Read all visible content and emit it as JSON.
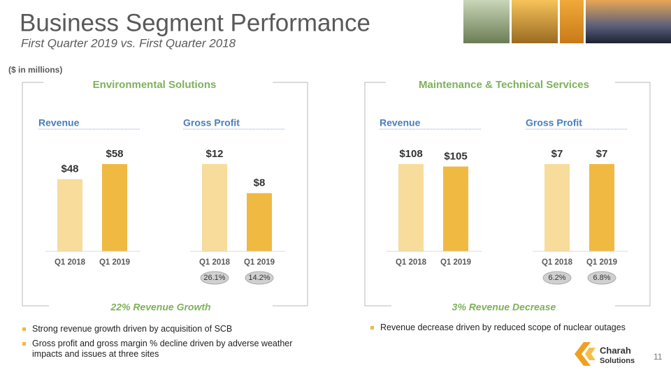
{
  "header": {
    "title": "Business Segment Performance",
    "subtitle": "First Quarter 2019 vs. First Quarter 2018",
    "note": "($ in millions)"
  },
  "panels": [
    {
      "title": "Environmental Solutions",
      "summary": "22% Revenue Growth",
      "bullets": [
        "Strong revenue growth driven by acquisition of SCB",
        "Gross profit and gross margin % decline driven by adverse weather impacts and issues at three sites"
      ]
    },
    {
      "title": "Maintenance & Technical Services",
      "summary": "3% Revenue Decrease",
      "bullets": [
        "Revenue decrease driven by reduced scope of nuclear outages"
      ]
    }
  ],
  "chart_data": [
    {
      "type": "bar",
      "title": "Revenue",
      "categories": [
        "Q1 2018",
        "Q1 2019"
      ],
      "values": [
        48,
        58
      ],
      "value_labels": [
        "$48",
        "$58"
      ],
      "colors": [
        "#f7dc9c",
        "#f0b942"
      ]
    },
    {
      "type": "bar",
      "title": "Gross Profit",
      "categories": [
        "Q1 2018",
        "Q1 2019"
      ],
      "values": [
        12,
        8
      ],
      "value_labels": [
        "$12",
        "$8"
      ],
      "colors": [
        "#f7dc9c",
        "#f0b942"
      ],
      "annotations": [
        "26.1%",
        "14.2%"
      ]
    },
    {
      "type": "bar",
      "title": "Revenue",
      "categories": [
        "Q1 2018",
        "Q1 2019"
      ],
      "values": [
        108,
        105
      ],
      "value_labels": [
        "$108",
        "$105"
      ],
      "colors": [
        "#f7dc9c",
        "#f0b942"
      ]
    },
    {
      "type": "bar",
      "title": "Gross Profit",
      "categories": [
        "Q1 2018",
        "Q1 2019"
      ],
      "values": [
        7,
        7
      ],
      "value_labels": [
        "$7",
        "$7"
      ],
      "colors": [
        "#f7dc9c",
        "#f0b942"
      ],
      "annotations": [
        "6.2%",
        "6.8%"
      ]
    }
  ],
  "footer": {
    "page": "11",
    "logo_name": "Charah",
    "logo_sub": "Solutions"
  }
}
